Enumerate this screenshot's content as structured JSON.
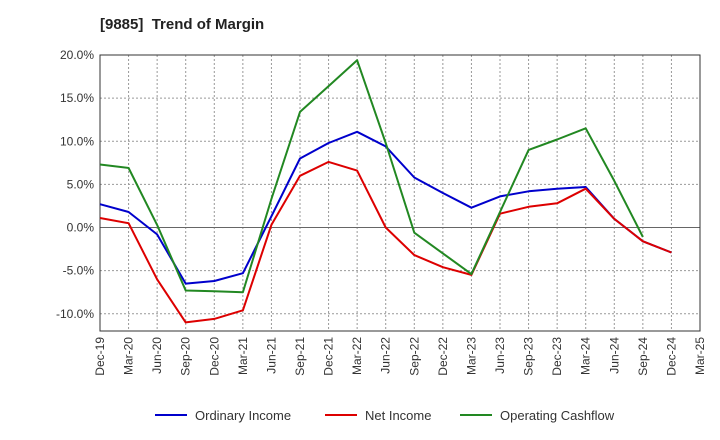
{
  "chart_data": {
    "type": "line",
    "title": "[9885]  Trend of Margin",
    "x": [
      "Dec-19",
      "Mar-20",
      "Jun-20",
      "Sep-20",
      "Dec-20",
      "Mar-21",
      "Jun-21",
      "Sep-21",
      "Dec-21",
      "Mar-22",
      "Jun-22",
      "Sep-22",
      "Dec-22",
      "Mar-23",
      "Jun-23",
      "Sep-23",
      "Dec-23",
      "Mar-24",
      "Jun-24",
      "Sep-24",
      "Dec-24",
      "Mar-25"
    ],
    "y_ticks": [
      "20.0%",
      "15.0%",
      "10.0%",
      "5.0%",
      "0.0%",
      "-5.0%",
      "-10.0%"
    ],
    "y_tick_values": [
      20,
      15,
      10,
      5,
      0,
      -5,
      -10
    ],
    "ylim": [
      -12,
      20
    ],
    "grid": true,
    "legend_position": "bottom",
    "series": [
      {
        "name": "Ordinary Income",
        "color": "#0000cc",
        "values": [
          2.7,
          1.8,
          -0.8,
          -6.5,
          -6.2,
          -5.3,
          1.3,
          8.0,
          9.8,
          11.1,
          9.4,
          5.8,
          4.0,
          2.3,
          3.6,
          4.2,
          4.5,
          4.7,
          1.0,
          -1.6,
          -2.9,
          null
        ]
      },
      {
        "name": "Net Income",
        "color": "#dd0000",
        "values": [
          1.1,
          0.5,
          -6.0,
          -11.0,
          -10.6,
          -9.6,
          0.3,
          6.0,
          7.6,
          6.6,
          0.0,
          -3.2,
          -4.6,
          -5.5,
          1.6,
          2.4,
          2.8,
          4.5,
          1.0,
          -1.6,
          -2.9,
          null
        ]
      },
      {
        "name": "Operating Cashflow",
        "color": "#228822",
        "values": [
          7.3,
          6.9,
          0.3,
          -7.3,
          -7.4,
          -7.5,
          3.3,
          13.4,
          16.4,
          19.4,
          9.8,
          -0.6,
          -3.0,
          -5.4,
          1.8,
          9.0,
          10.2,
          11.5,
          5.4,
          -1.1,
          null,
          null
        ]
      }
    ]
  }
}
